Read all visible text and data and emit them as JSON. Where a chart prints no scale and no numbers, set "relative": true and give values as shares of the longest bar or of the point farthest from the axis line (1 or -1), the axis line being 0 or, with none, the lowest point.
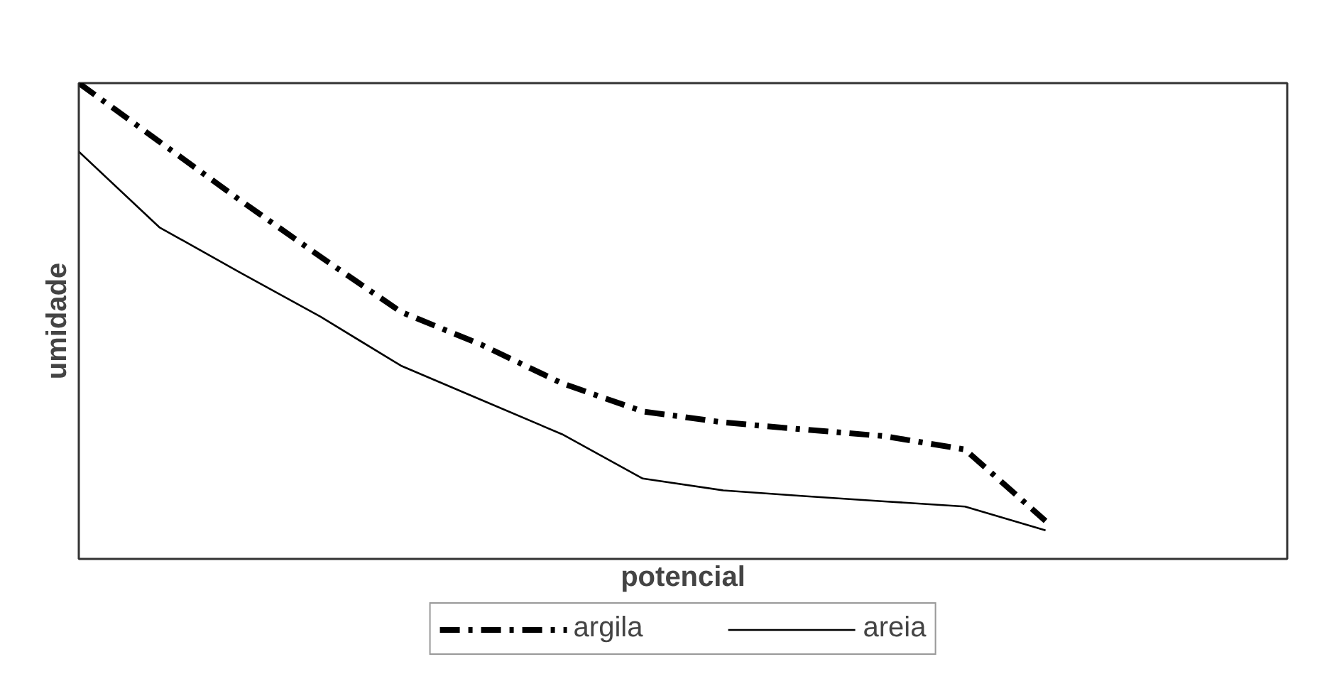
{
  "chart_data": {
    "type": "line",
    "relative": true,
    "xlabel": "potencial",
    "ylabel": "umidade",
    "categories": [
      null,
      null,
      null,
      null,
      null,
      null,
      null,
      null,
      null,
      null,
      null,
      null,
      null,
      null,
      null,
      null
    ],
    "series": [
      {
        "name": "argila",
        "color": "#000000",
        "line_style": "dashdot",
        "values": [
          1.0,
          0.877,
          0.754,
          0.635,
          0.519,
          0.45,
          0.369,
          0.31,
          0.287,
          0.272,
          0.258,
          0.23,
          0.08,
          null,
          null,
          null
        ]
      },
      {
        "name": "areia",
        "color": "#000000",
        "line_style": "solid",
        "values": [
          0.856,
          0.697,
          0.602,
          0.509,
          0.406,
          0.334,
          0.262,
          0.169,
          0.144,
          0.132,
          0.121,
          0.11,
          0.06,
          null,
          null,
          null
        ]
      }
    ],
    "legend": "bottom"
  }
}
